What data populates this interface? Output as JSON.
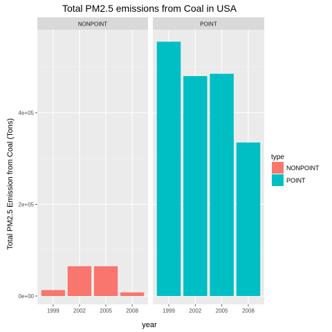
{
  "chart_data": {
    "type": "bar",
    "title": "Total PM2.5 emissions from Coal in USA",
    "xlabel": "year",
    "ylabel": "Total PM2.5 Emission from Coal (Tons)",
    "categories": [
      "1999",
      "2002",
      "2005",
      "2008"
    ],
    "ylim": [
      0,
      580000
    ],
    "yticks": [
      0,
      200000,
      400000
    ],
    "ytick_labels": [
      "0e+00",
      "2e+05",
      "4e+05"
    ],
    "facets": [
      {
        "name": "NONPOINT",
        "color": "#F8766D",
        "values": [
          13000,
          65000,
          65000,
          8000
        ]
      },
      {
        "name": "POINT",
        "color": "#00BFC4",
        "values": [
          555000,
          480000,
          485000,
          335000
        ]
      }
    ],
    "legend": {
      "title": "type",
      "position": "right",
      "entries": [
        {
          "label": "NONPOINT",
          "color": "#F8766D"
        },
        {
          "label": "POINT",
          "color": "#00BFC4"
        }
      ]
    },
    "grid": true
  }
}
